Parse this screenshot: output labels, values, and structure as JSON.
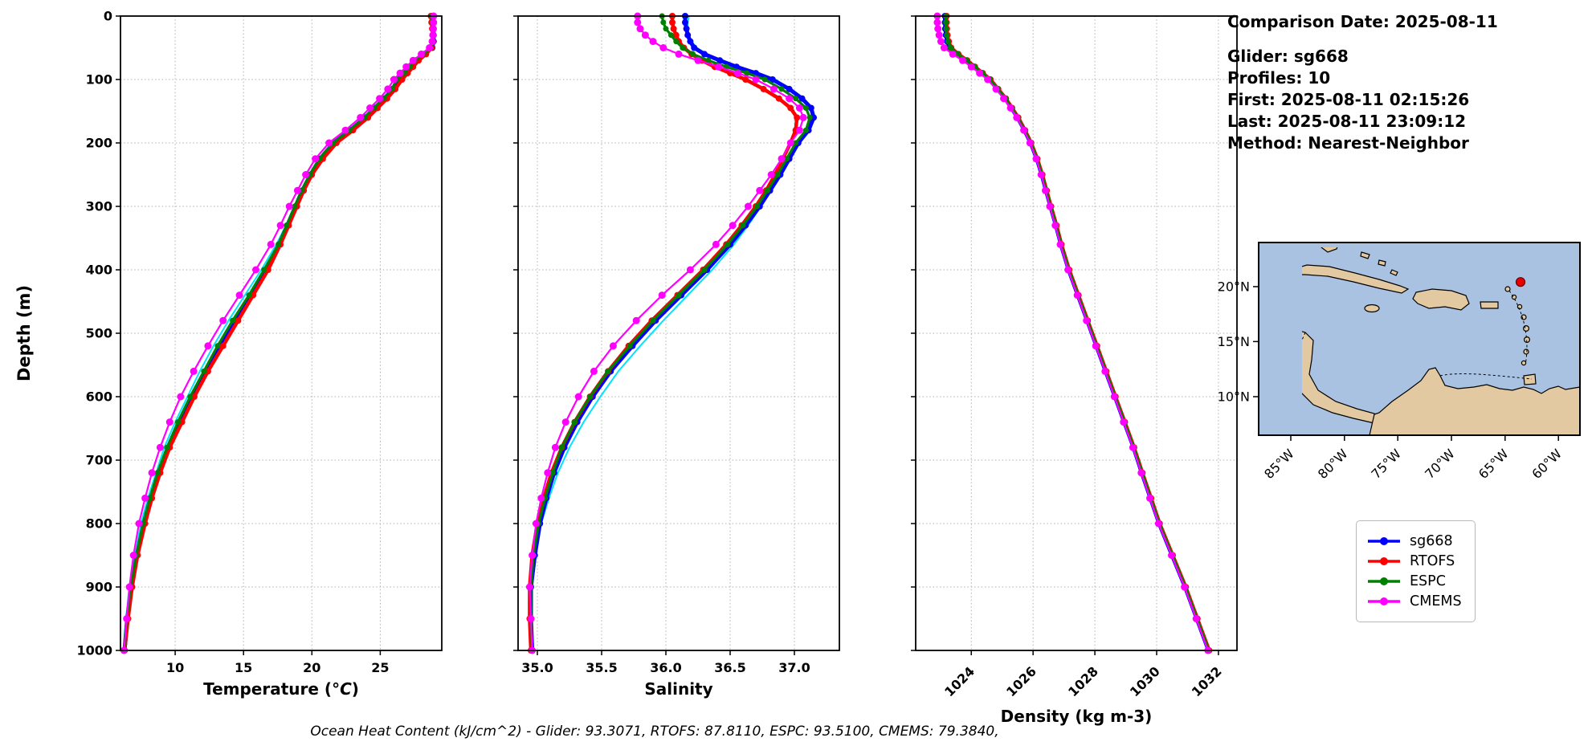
{
  "ylabel": "Depth (m)",
  "footer": "Ocean Heat Content (kJ/cm^2) - Glider: 93.3071,  RTOFS: 87.8110,  ESPC: 93.5100,  CMEMS: 79.3840,",
  "meta": {
    "comparison_date": "Comparison Date: 2025-08-11",
    "glider": "Glider: sg668",
    "profiles": "Profiles: 10",
    "first": "First: 2025-08-11 02:15:26",
    "last": "Last: 2025-08-11 23:09:12",
    "method": "Method: Nearest-Neighbor"
  },
  "legend": {
    "items": [
      {
        "label": "sg668",
        "color": "#0000ff"
      },
      {
        "label": "RTOFS",
        "color": "#ff0000"
      },
      {
        "label": "ESPC",
        "color": "#008000"
      },
      {
        "label": "CMEMS",
        "color": "#ff00ff"
      }
    ]
  },
  "map": {
    "ocean_color": "#a9c2e2",
    "land_color": "#e3c9a1",
    "marker_color": "#e60000",
    "lat_ticks": [
      "20°N",
      "15°N",
      "10°N"
    ],
    "lat_fracs": [
      0.229,
      0.514,
      0.8
    ],
    "lon_ticks": [
      "85°W",
      "80°W",
      "75°W",
      "70°W",
      "65°W",
      "60°W"
    ],
    "lon_fracs": [
      0.1,
      0.267,
      0.433,
      0.6,
      0.767,
      0.933
    ],
    "marker": {
      "fx": 0.815,
      "fy": 0.205
    }
  },
  "chart_data": [
    {
      "type": "line",
      "xlabel_pre": "Temperature (",
      "xlabel_math": "°C",
      "xlabel_post": ")",
      "ylabel": "Depth (m)",
      "xlim": [
        6,
        29.5
      ],
      "ylim": [
        1000,
        0
      ],
      "grid": true,
      "xticks": [
        10,
        15,
        20,
        25
      ],
      "xtick_labels": [
        "10",
        "15",
        "20",
        "25"
      ],
      "xtick_rotation": 0,
      "yticks": [
        0,
        100,
        200,
        300,
        400,
        500,
        600,
        700,
        800,
        900,
        1000
      ],
      "ytick_labels": [
        "0",
        "100",
        "200",
        "300",
        "400",
        "500",
        "600",
        "700",
        "800",
        "900",
        "1000"
      ],
      "show_ytick_labels": true,
      "depths": [
        0,
        10,
        20,
        30,
        40,
        50,
        60,
        70,
        80,
        90,
        100,
        115,
        130,
        145,
        160,
        180,
        200,
        225,
        250,
        275,
        300,
        330,
        360,
        400,
        440,
        480,
        520,
        560,
        600,
        640,
        680,
        720,
        760,
        800,
        850,
        900,
        950,
        1000
      ],
      "series": [
        {
          "name": "glider-raw",
          "color": "#00e5ff",
          "lw": 2,
          "marker": false,
          "values": [
            28.9,
            28.9,
            28.95,
            28.9,
            28.85,
            28.75,
            28.1,
            27.5,
            27.1,
            26.7,
            26.2,
            25.8,
            25.2,
            24.5,
            23.8,
            22.7,
            21.5,
            20.5,
            19.8,
            19.2,
            18.7,
            18.1,
            17.4,
            16.3,
            15.1,
            13.9,
            12.8,
            11.8,
            10.9,
            10.0,
            9.2,
            8.6,
            8.0,
            7.5,
            7.05,
            6.65,
            6.4,
            6.2
          ]
        },
        {
          "name": "sg668",
          "color": "#0000ff",
          "lw": 5,
          "marker": true,
          "r": 4,
          "values": [
            28.8,
            28.85,
            28.9,
            28.9,
            28.9,
            28.8,
            28.2,
            27.6,
            27.2,
            26.8,
            26.3,
            25.9,
            25.3,
            24.6,
            23.9,
            22.8,
            21.6,
            20.6,
            19.9,
            19.3,
            18.8,
            18.2,
            17.6,
            16.6,
            15.5,
            14.3,
            13.2,
            12.2,
            11.2,
            10.3,
            9.5,
            8.8,
            8.2,
            7.7,
            7.2,
            6.8,
            6.5,
            6.3
          ]
        },
        {
          "name": "RTOFS",
          "color": "#ff0000",
          "lw": 4.5,
          "marker": true,
          "r": 4,
          "values": [
            28.7,
            28.75,
            28.8,
            28.85,
            28.85,
            28.75,
            28.35,
            27.8,
            27.4,
            27.0,
            26.6,
            26.1,
            25.5,
            24.8,
            24.1,
            23.0,
            21.8,
            20.8,
            20.0,
            19.4,
            18.9,
            18.3,
            17.7,
            16.8,
            15.7,
            14.6,
            13.5,
            12.4,
            11.4,
            10.5,
            9.6,
            8.9,
            8.3,
            7.8,
            7.25,
            6.85,
            6.55,
            6.3
          ]
        },
        {
          "name": "ESPC",
          "color": "#008000",
          "lw": 3.2,
          "marker": true,
          "r": 3.5,
          "values": [
            28.75,
            28.8,
            28.85,
            28.85,
            28.8,
            28.7,
            28.15,
            27.55,
            27.15,
            26.75,
            26.25,
            25.85,
            25.25,
            24.55,
            23.85,
            22.75,
            21.55,
            20.55,
            19.85,
            19.25,
            18.75,
            18.15,
            17.55,
            16.5,
            15.4,
            14.2,
            13.1,
            12.1,
            11.1,
            10.2,
            9.4,
            8.7,
            8.15,
            7.65,
            7.15,
            6.75,
            6.45,
            6.25
          ]
        },
        {
          "name": "CMEMS",
          "color": "#ff00ff",
          "lw": 2.2,
          "marker": true,
          "r": 4.5,
          "values": [
            28.9,
            28.9,
            28.88,
            28.85,
            28.8,
            28.6,
            28.0,
            27.4,
            26.9,
            26.45,
            26.0,
            25.55,
            24.95,
            24.25,
            23.55,
            22.45,
            21.25,
            20.25,
            19.55,
            18.95,
            18.35,
            17.7,
            17.0,
            15.9,
            14.7,
            13.5,
            12.4,
            11.35,
            10.4,
            9.6,
            8.9,
            8.3,
            7.8,
            7.35,
            6.95,
            6.65,
            6.45,
            6.25
          ]
        }
      ]
    },
    {
      "type": "line",
      "xlabel_pre": "Salinity",
      "xlabel_math": "",
      "xlabel_post": "",
      "ylabel": "Depth (m)",
      "xlim": [
        34.85,
        37.35
      ],
      "ylim": [
        1000,
        0
      ],
      "grid": true,
      "xticks": [
        35.0,
        35.5,
        36.0,
        36.5,
        37.0
      ],
      "xtick_labels": [
        "35.0",
        "35.5",
        "36.0",
        "36.5",
        "37.0"
      ],
      "xtick_rotation": 0,
      "yticks": [
        0,
        100,
        200,
        300,
        400,
        500,
        600,
        700,
        800,
        900,
        1000
      ],
      "ytick_labels": [
        "0",
        "100",
        "200",
        "300",
        "400",
        "500",
        "600",
        "700",
        "800",
        "900",
        "1000"
      ],
      "show_ytick_labels": false,
      "depths": [
        0,
        10,
        20,
        30,
        40,
        50,
        60,
        70,
        80,
        90,
        100,
        115,
        130,
        145,
        160,
        180,
        200,
        225,
        250,
        275,
        300,
        330,
        360,
        400,
        440,
        480,
        520,
        560,
        600,
        640,
        680,
        720,
        760,
        800,
        850,
        900,
        950,
        1000
      ],
      "series": [
        {
          "name": "glider-raw",
          "color": "#00e5ff",
          "lw": 2,
          "marker": false,
          "values": [
            36.18,
            36.17,
            36.17,
            36.18,
            36.2,
            36.24,
            36.32,
            36.44,
            36.57,
            36.72,
            36.85,
            36.97,
            37.07,
            37.14,
            37.16,
            37.12,
            37.04,
            36.97,
            36.9,
            36.82,
            36.74,
            36.64,
            36.53,
            36.36,
            36.17,
            35.98,
            35.8,
            35.63,
            35.49,
            35.36,
            35.25,
            35.16,
            35.09,
            35.03,
            34.99,
            34.96,
            34.95,
            34.96
          ]
        },
        {
          "name": "sg668",
          "color": "#0000ff",
          "lw": 5,
          "marker": true,
          "r": 4,
          "values": [
            36.15,
            36.15,
            36.16,
            36.17,
            36.19,
            36.22,
            36.3,
            36.42,
            36.55,
            36.7,
            36.83,
            36.96,
            37.06,
            37.13,
            37.15,
            37.11,
            37.03,
            36.96,
            36.89,
            36.81,
            36.73,
            36.62,
            36.5,
            36.32,
            36.12,
            35.92,
            35.74,
            35.57,
            35.43,
            35.31,
            35.21,
            35.13,
            35.07,
            35.02,
            34.98,
            34.95,
            34.95,
            34.96
          ]
        },
        {
          "name": "RTOFS",
          "color": "#ff0000",
          "lw": 4.5,
          "marker": true,
          "r": 4,
          "values": [
            36.05,
            36.05,
            36.06,
            36.08,
            36.1,
            36.14,
            36.2,
            36.28,
            36.38,
            36.5,
            36.62,
            36.76,
            36.88,
            36.97,
            37.02,
            37.01,
            36.97,
            36.91,
            36.85,
            36.78,
            36.7,
            36.59,
            36.47,
            36.29,
            36.09,
            35.89,
            35.71,
            35.55,
            35.41,
            35.29,
            35.19,
            35.11,
            35.05,
            35.0,
            34.96,
            34.94,
            34.94,
            34.95
          ]
        },
        {
          "name": "ESPC",
          "color": "#008000",
          "lw": 3.2,
          "marker": true,
          "r": 3.5,
          "values": [
            35.97,
            35.98,
            36.0,
            36.04,
            36.08,
            36.13,
            36.21,
            36.33,
            36.47,
            36.63,
            36.77,
            36.9,
            37.01,
            37.09,
            37.12,
            37.09,
            37.01,
            36.94,
            36.87,
            36.79,
            36.71,
            36.6,
            36.48,
            36.3,
            36.1,
            35.9,
            35.72,
            35.55,
            35.41,
            35.29,
            35.19,
            35.12,
            35.06,
            35.01,
            34.97,
            34.95,
            34.95,
            34.96
          ]
        },
        {
          "name": "CMEMS",
          "color": "#ff00ff",
          "lw": 2.2,
          "marker": true,
          "r": 4.5,
          "values": [
            35.78,
            35.78,
            35.8,
            35.84,
            35.9,
            35.98,
            36.1,
            36.25,
            36.41,
            36.56,
            36.7,
            36.84,
            36.96,
            37.04,
            37.07,
            37.04,
            36.97,
            36.9,
            36.82,
            36.73,
            36.64,
            36.52,
            36.39,
            36.19,
            35.97,
            35.77,
            35.59,
            35.44,
            35.32,
            35.22,
            35.14,
            35.08,
            35.03,
            34.99,
            34.96,
            34.94,
            34.95,
            34.96
          ]
        }
      ]
    },
    {
      "type": "line",
      "xlabel_pre": "Density (kg m-3)",
      "xlabel_math": "",
      "xlabel_post": "",
      "ylabel": "Depth (m)",
      "xlim": [
        1022.2,
        1032.6
      ],
      "ylim": [
        1000,
        0
      ],
      "grid": true,
      "xticks": [
        1024,
        1026,
        1028,
        1030,
        1032
      ],
      "xtick_labels": [
        "1024",
        "1026",
        "1028",
        "1030",
        "1032"
      ],
      "xtick_rotation": -45,
      "yticks": [
        0,
        100,
        200,
        300,
        400,
        500,
        600,
        700,
        800,
        900,
        1000
      ],
      "ytick_labels": [
        "0",
        "100",
        "200",
        "300",
        "400",
        "500",
        "600",
        "700",
        "800",
        "900",
        "1000"
      ],
      "show_ytick_labels": false,
      "depths": [
        0,
        10,
        20,
        30,
        40,
        50,
        60,
        70,
        80,
        90,
        100,
        115,
        130,
        145,
        160,
        180,
        200,
        225,
        250,
        275,
        300,
        330,
        360,
        400,
        440,
        480,
        520,
        560,
        600,
        640,
        680,
        720,
        760,
        800,
        850,
        900,
        950,
        1000
      ],
      "series": [
        {
          "name": "sg668",
          "color": "#0000ff",
          "lw": 5,
          "marker": true,
          "r": 4,
          "values": [
            1023.15,
            1023.15,
            1023.16,
            1023.18,
            1023.22,
            1023.3,
            1023.55,
            1023.85,
            1024.1,
            1024.35,
            1024.6,
            1024.85,
            1025.1,
            1025.3,
            1025.5,
            1025.72,
            1025.92,
            1026.12,
            1026.28,
            1026.42,
            1026.56,
            1026.74,
            1026.9,
            1027.15,
            1027.45,
            1027.75,
            1028.05,
            1028.35,
            1028.65,
            1028.95,
            1029.25,
            1029.52,
            1029.8,
            1030.08,
            1030.5,
            1030.92,
            1031.3,
            1031.68
          ]
        },
        {
          "name": "RTOFS",
          "color": "#ff0000",
          "lw": 4.5,
          "marker": true,
          "r": 4,
          "values": [
            1023.2,
            1023.2,
            1023.21,
            1023.23,
            1023.27,
            1023.35,
            1023.58,
            1023.87,
            1024.12,
            1024.37,
            1024.62,
            1024.87,
            1025.12,
            1025.32,
            1025.52,
            1025.74,
            1025.94,
            1026.14,
            1026.3,
            1026.44,
            1026.58,
            1026.76,
            1026.92,
            1027.17,
            1027.47,
            1027.77,
            1028.07,
            1028.37,
            1028.67,
            1028.97,
            1029.27,
            1029.54,
            1029.82,
            1030.1,
            1030.52,
            1030.94,
            1031.32,
            1031.7
          ]
        },
        {
          "name": "ESPC",
          "color": "#008000",
          "lw": 3.2,
          "marker": true,
          "r": 3.5,
          "values": [
            1023.18,
            1023.18,
            1023.19,
            1023.21,
            1023.25,
            1023.33,
            1023.57,
            1023.86,
            1024.11,
            1024.36,
            1024.61,
            1024.86,
            1025.11,
            1025.31,
            1025.51,
            1025.73,
            1025.93,
            1026.13,
            1026.29,
            1026.43,
            1026.57,
            1026.75,
            1026.91,
            1027.16,
            1027.46,
            1027.76,
            1028.06,
            1028.36,
            1028.66,
            1028.96,
            1029.26,
            1029.53,
            1029.81,
            1030.09,
            1030.51,
            1030.93,
            1031.31,
            1031.69
          ]
        },
        {
          "name": "CMEMS",
          "color": "#ff00ff",
          "lw": 2.2,
          "marker": true,
          "r": 4.5,
          "values": [
            1022.9,
            1022.9,
            1022.92,
            1022.96,
            1023.02,
            1023.12,
            1023.4,
            1023.72,
            1024.0,
            1024.27,
            1024.53,
            1024.8,
            1025.05,
            1025.27,
            1025.47,
            1025.7,
            1025.9,
            1026.1,
            1026.26,
            1026.4,
            1026.54,
            1026.72,
            1026.88,
            1027.13,
            1027.43,
            1027.73,
            1028.03,
            1028.33,
            1028.63,
            1028.93,
            1029.23,
            1029.5,
            1029.78,
            1030.06,
            1030.48,
            1030.9,
            1031.28,
            1031.66
          ]
        }
      ]
    }
  ]
}
